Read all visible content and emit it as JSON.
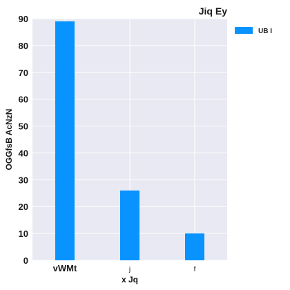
{
  "chart_data": {
    "type": "bar",
    "title": "Jiq Ey",
    "xlabel": "x  Jq",
    "ylabel": "OGGfsB AcNzN",
    "categories": [
      "vWMt",
      "j",
      "f"
    ],
    "series": [
      {
        "name": "UB I",
        "values": [
          89,
          26,
          10
        ]
      }
    ],
    "ylim": [
      0,
      90
    ],
    "yticks": [
      0,
      10,
      20,
      30,
      40,
      50,
      60,
      70,
      80,
      90
    ],
    "grid": true,
    "legend": "top-right",
    "colors": {
      "bar": "#0893fe",
      "plot_bg": "#e8e9f2",
      "grid": "#ffffff"
    }
  }
}
